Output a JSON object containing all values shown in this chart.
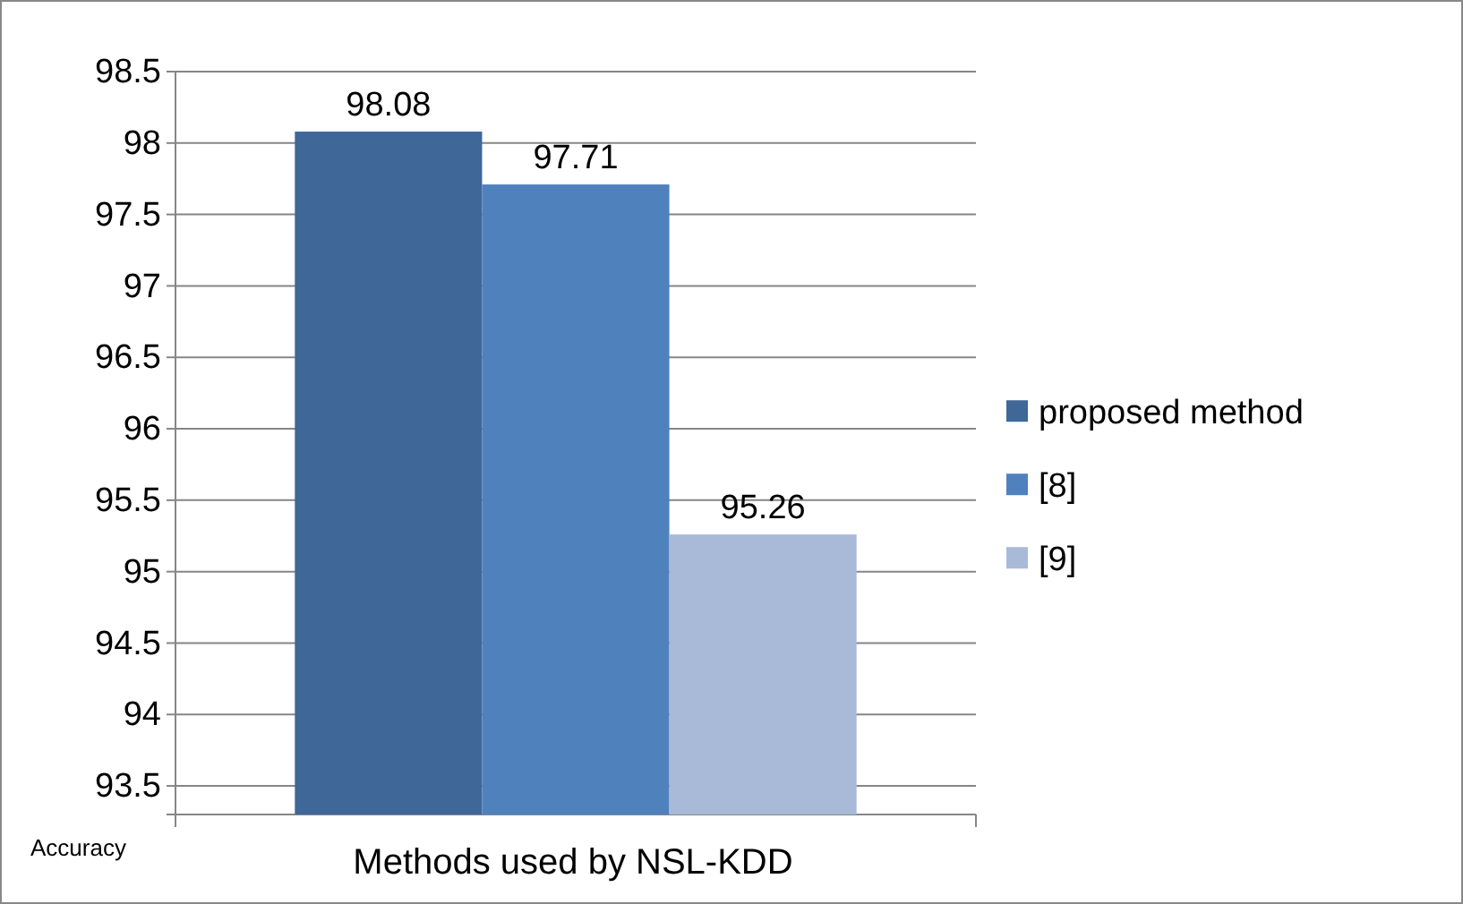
{
  "chart_data": {
    "type": "bar",
    "categories": [
      null
    ],
    "series": [
      {
        "name": "proposed method",
        "color": "#3f6797",
        "values": [
          98.08
        ]
      },
      {
        "name": "[8]",
        "color": "#4f81bd",
        "values": [
          97.71
        ]
      },
      {
        "name": "[9]",
        "color": "#a9b9d8",
        "values": [
          95.26
        ]
      }
    ],
    "ylim": [
      93.3,
      98.5
    ],
    "yticks": [
      93.5,
      94,
      94.5,
      95,
      95.5,
      96,
      96.5,
      97,
      97.5,
      98,
      98.5
    ],
    "xlabel": "Methods used by NSL-KDD",
    "ylabel": "Accuracy",
    "data_labels": true,
    "grid": "y",
    "legend": "right"
  }
}
